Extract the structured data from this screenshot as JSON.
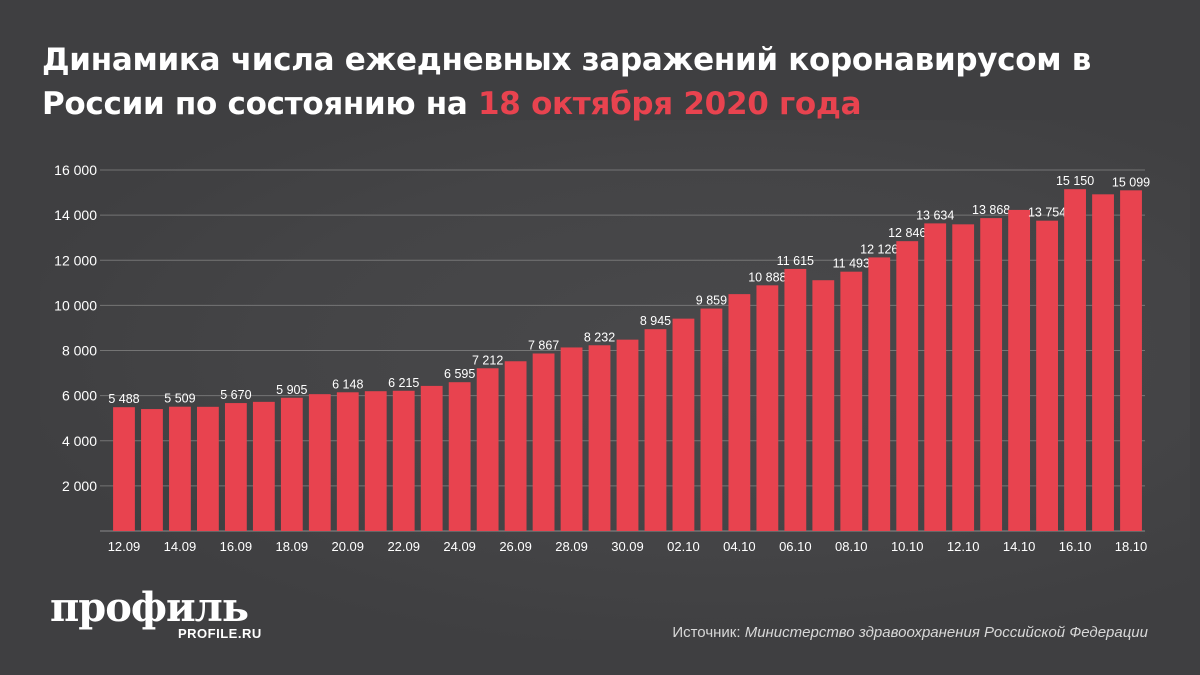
{
  "header": {
    "title_part1": "Динамика числа ежедневных заражений коронавирусом в России по состоянию на ",
    "title_highlight": "18 октября 2020 года"
  },
  "footer": {
    "brand": "профиль",
    "brand_url": "PROFILE.RU",
    "source_label": "Источник: ",
    "source_name": "Министерство здравоохранения Российской Федерации"
  },
  "colors": {
    "background": "#3f3f41",
    "bar": "#e8434f",
    "highlight": "#e8434f",
    "grid": "#8a8a8a",
    "text": "#ffffff"
  },
  "chart_data": {
    "type": "bar",
    "title": "Динамика числа ежедневных заражений коронавирусом в России по состоянию на 18 октября 2020 года",
    "xlabel": "",
    "ylabel": "",
    "ylim": [
      0,
      16000
    ],
    "yticks": [
      2000,
      4000,
      6000,
      8000,
      10000,
      12000,
      14000,
      16000
    ],
    "ytick_labels": [
      "2 000",
      "4 000",
      "6 000",
      "8 000",
      "10 000",
      "12 000",
      "14 000",
      "16 000"
    ],
    "grid": true,
    "categories": [
      "12.09",
      "13.09",
      "14.09",
      "15.09",
      "16.09",
      "17.09",
      "18.09",
      "19.09",
      "20.09",
      "21.09",
      "22.09",
      "23.09",
      "24.09",
      "25.09",
      "26.09",
      "27.09",
      "28.09",
      "29.09",
      "30.09",
      "01.10",
      "02.10",
      "03.10",
      "04.10",
      "05.10",
      "06.10",
      "07.10",
      "08.10",
      "09.10",
      "10.10",
      "11.10",
      "12.10",
      "13.10",
      "14.10",
      "15.10",
      "16.10",
      "17.10",
      "18.10"
    ],
    "xtick_labels": [
      "12.09",
      "",
      "14.09",
      "",
      "16.09",
      "",
      "18.09",
      "",
      "20.09",
      "",
      "22.09",
      "",
      "24.09",
      "",
      "26.09",
      "",
      "28.09",
      "",
      "30.09",
      "",
      "02.10",
      "",
      "04.10",
      "",
      "06.10",
      "",
      "08.10",
      "",
      "10.10",
      "",
      "12.10",
      "",
      "14.10",
      "",
      "16.10",
      "",
      "18.10"
    ],
    "values": [
      5488,
      5405,
      5509,
      5504,
      5670,
      5724,
      5905,
      6065,
      6148,
      6196,
      6215,
      6431,
      6595,
      7212,
      7523,
      7867,
      8135,
      8232,
      8481,
      8945,
      9412,
      9859,
      10499,
      10888,
      11615,
      11115,
      11493,
      12126,
      12846,
      13634,
      13592,
      13868,
      14231,
      13754,
      15150,
      14922,
      15099
    ],
    "value_labels": [
      "5 488",
      "",
      "5 509",
      "",
      "5 670",
      "",
      "5 905",
      "",
      "6 148",
      "",
      "6 215",
      "",
      "6 595",
      "7 212",
      "",
      "7 867",
      "",
      "8 232",
      "",
      "8 945",
      "",
      "9 859",
      "",
      "10 888",
      "11 615",
      "",
      "11 493",
      "12 126",
      "12 846",
      "13 634",
      "",
      "13 868",
      "",
      "13 754",
      "15 150",
      "",
      "15 099"
    ]
  }
}
